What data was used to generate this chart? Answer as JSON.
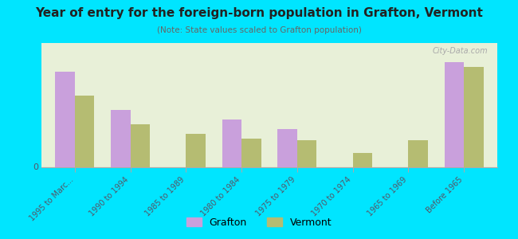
{
  "title": "Year of entry for the foreign-born population in Grafton, Vermont",
  "subtitle": "(Note: State values scaled to Grafton population)",
  "categories": [
    "1995 to Marc...",
    "1990 to 1994",
    "1985 to 1989",
    "1980 to 1984",
    "1975 to 1979",
    "1970 to 1974",
    "1965 to 1969",
    "Before 1965"
  ],
  "grafton_values": [
    10,
    6,
    0,
    5,
    4,
    0,
    0,
    11
  ],
  "vermont_values": [
    7.5,
    4.5,
    3.5,
    3.0,
    2.8,
    1.5,
    2.8,
    10.5
  ],
  "grafton_color": "#c9a0dc",
  "vermont_color": "#b5bc72",
  "background_top": "#e8f0d8",
  "background_bottom": "#f5f5e8",
  "outer_bg": "#00e5ff",
  "bar_width": 0.35,
  "ylim": [
    0,
    13
  ],
  "legend_grafton": "Grafton",
  "legend_vermont": "Vermont",
  "watermark": "City-Data.com"
}
